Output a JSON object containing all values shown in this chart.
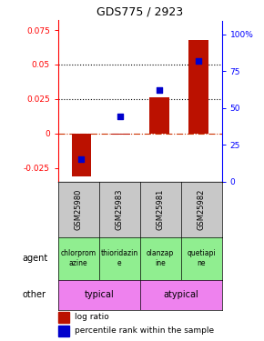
{
  "title": "GDS775 / 2923",
  "samples": [
    "GSM25980",
    "GSM25983",
    "GSM25981",
    "GSM25982"
  ],
  "log_ratios": [
    -0.031,
    -0.001,
    0.026,
    0.068
  ],
  "percentile_ranks": [
    0.15,
    0.44,
    0.62,
    0.82
  ],
  "ylim_left": [
    -0.035,
    0.082
  ],
  "ylim_right": [
    0,
    1.093
  ],
  "yticks_left": [
    -0.025,
    0,
    0.025,
    0.05,
    0.075
  ],
  "ytick_labels_left": [
    "-0.025",
    "0",
    "0.025",
    "0.05",
    "0.075"
  ],
  "yticks_right": [
    0,
    0.25,
    0.5,
    0.75,
    1.0
  ],
  "ytick_labels_right": [
    "0",
    "25",
    "50",
    "75",
    "100%"
  ],
  "hlines": [
    0.025,
    0.05
  ],
  "agent_labels": [
    "chlorprom\nazine",
    "thioridazin\ne",
    "olanzap\nine",
    "quetiapi\nne"
  ],
  "agent_bg": "#90EE90",
  "other_groups": [
    [
      "typical",
      2
    ],
    [
      "atypical",
      2
    ]
  ],
  "other_color": "#EE82EE",
  "bar_color": "#bb1100",
  "dot_color": "#0000cc",
  "sample_bg": "#c8c8c8",
  "bar_width": 0.5
}
